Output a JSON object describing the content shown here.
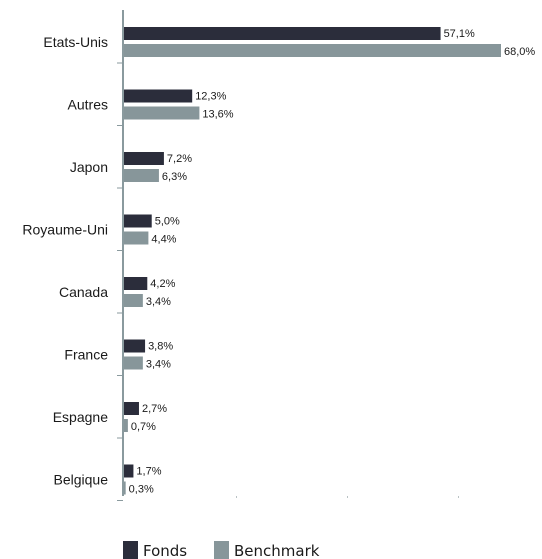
{
  "chart_data": {
    "type": "bar",
    "orientation": "horizontal",
    "categories": [
      "Etats-Unis",
      "Autres",
      "Japon",
      "Royaume-Uni",
      "Canada",
      "France",
      "Espagne",
      "Belgique"
    ],
    "series": [
      {
        "name": "Fonds",
        "color": "#2b2d3b",
        "values": [
          57.1,
          12.3,
          7.2,
          5.0,
          4.2,
          3.8,
          2.7,
          1.7
        ],
        "labels": [
          "57,1%",
          "12,3%",
          "7,2%",
          "5,0%",
          "4,2%",
          "3,8%",
          "2,7%",
          "1,7%"
        ]
      },
      {
        "name": "Benchmark",
        "color": "#87969a",
        "values": [
          68.0,
          13.6,
          6.3,
          4.4,
          3.4,
          3.4,
          0.7,
          0.3
        ],
        "labels": [
          "68,0%",
          "13,6%",
          "6,3%",
          "4,4%",
          "3,4%",
          "3,4%",
          "0,7%",
          "0,3%"
        ]
      }
    ],
    "xlim": [
      0,
      70
    ],
    "axis_color": "#8a9a9e",
    "grid": false,
    "legend_position": "bottom-left"
  }
}
